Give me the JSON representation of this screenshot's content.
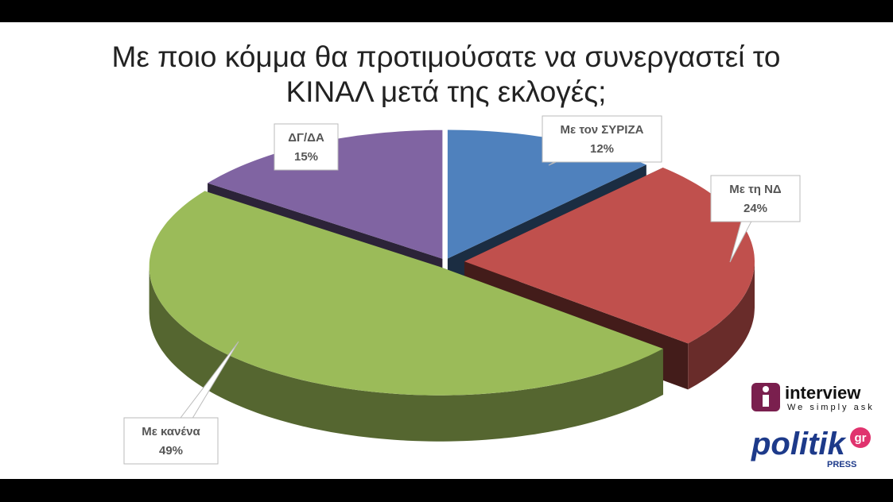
{
  "chart_data": {
    "type": "pie",
    "title": "Με ποιο κόμμα θα προτιμούσατε να συνεργαστεί το ΚΙΝΑΛ μετά της εκλογές;",
    "categories": [
      "Με τον ΣΥΡΙΖΑ",
      "Με τη ΝΔ",
      "Με κανένα",
      "ΔΓ/ΔΑ"
    ],
    "values": [
      12,
      24,
      49,
      15
    ],
    "value_labels": [
      "12%",
      "24%",
      "49%",
      "15%"
    ],
    "colors": [
      "#4f81bd",
      "#c0504d",
      "#9bbb59",
      "#8064a2"
    ]
  },
  "logos": {
    "interview": "interview",
    "tagline": "We simply ask",
    "politik": "politik",
    "gr": "gr",
    "press": "PRESS"
  }
}
